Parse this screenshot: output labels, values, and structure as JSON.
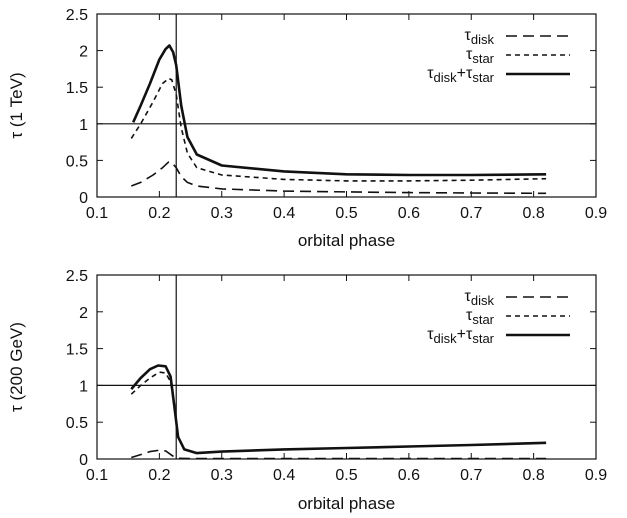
{
  "chart_data": [
    {
      "type": "line",
      "xlabel": "orbital phase",
      "ylabel": "τ (1 TeV)",
      "xlim": [
        0.1,
        0.9
      ],
      "ylim": [
        0,
        2.5
      ],
      "xticks": [
        "0.1",
        "0.2",
        "0.3",
        "0.4",
        "0.5",
        "0.6",
        "0.7",
        "0.8",
        "0.9"
      ],
      "yticks": [
        "0",
        "0.5",
        "1",
        "1.5",
        "2",
        "2.5"
      ],
      "reference_lines": {
        "horizontal_y": 1,
        "vertical_x": 0.227
      },
      "legend_position": "top-right",
      "grid": false,
      "series": [
        {
          "name": {
            "base": "τ",
            "sub": "disk"
          },
          "style": "long-dash",
          "points": [
            [
              0.155,
              0.15
            ],
            [
              0.17,
              0.2
            ],
            [
              0.19,
              0.3
            ],
            [
              0.205,
              0.4
            ],
            [
              0.215,
              0.48
            ],
            [
              0.22,
              0.47
            ],
            [
              0.227,
              0.4
            ],
            [
              0.235,
              0.28
            ],
            [
              0.245,
              0.2
            ],
            [
              0.26,
              0.15
            ],
            [
              0.3,
              0.11
            ],
            [
              0.4,
              0.08
            ],
            [
              0.5,
              0.07
            ],
            [
              0.6,
              0.06
            ],
            [
              0.7,
              0.055
            ],
            [
              0.82,
              0.05
            ]
          ]
        },
        {
          "name": {
            "base": "τ",
            "sub": "star"
          },
          "style": "short-dash",
          "points": [
            [
              0.155,
              0.8
            ],
            [
              0.17,
              1.0
            ],
            [
              0.19,
              1.3
            ],
            [
              0.205,
              1.55
            ],
            [
              0.215,
              1.62
            ],
            [
              0.22,
              1.6
            ],
            [
              0.227,
              1.4
            ],
            [
              0.235,
              0.95
            ],
            [
              0.245,
              0.6
            ],
            [
              0.26,
              0.4
            ],
            [
              0.3,
              0.3
            ],
            [
              0.4,
              0.24
            ],
            [
              0.5,
              0.22
            ],
            [
              0.6,
              0.22
            ],
            [
              0.7,
              0.23
            ],
            [
              0.82,
              0.25
            ]
          ]
        },
        {
          "name": {
            "base": "τ",
            "sub": "disk",
            "join": "+",
            "base2": "τ",
            "sub2": "star"
          },
          "style": "solid",
          "points": [
            [
              0.158,
              1.02
            ],
            [
              0.17,
              1.25
            ],
            [
              0.185,
              1.55
            ],
            [
              0.2,
              1.88
            ],
            [
              0.21,
              2.02
            ],
            [
              0.216,
              2.07
            ],
            [
              0.222,
              1.98
            ],
            [
              0.227,
              1.8
            ],
            [
              0.235,
              1.25
            ],
            [
              0.245,
              0.82
            ],
            [
              0.26,
              0.58
            ],
            [
              0.3,
              0.43
            ],
            [
              0.4,
              0.35
            ],
            [
              0.5,
              0.31
            ],
            [
              0.6,
              0.3
            ],
            [
              0.7,
              0.3
            ],
            [
              0.82,
              0.31
            ]
          ]
        }
      ]
    },
    {
      "type": "line",
      "xlabel": "orbital phase",
      "ylabel": "τ (200 GeV)",
      "xlim": [
        0.1,
        0.9
      ],
      "ylim": [
        0,
        2.5
      ],
      "xticks": [
        "0.1",
        "0.2",
        "0.3",
        "0.4",
        "0.5",
        "0.6",
        "0.7",
        "0.8",
        "0.9"
      ],
      "yticks": [
        "0",
        "0.5",
        "1",
        "1.5",
        "2",
        "2.5"
      ],
      "reference_lines": {
        "horizontal_y": 1,
        "vertical_x": 0.227
      },
      "legend_position": "top-right",
      "grid": false,
      "series": [
        {
          "name": {
            "base": "τ",
            "sub": "disk"
          },
          "style": "long-dash",
          "points": [
            [
              0.155,
              0.02
            ],
            [
              0.17,
              0.06
            ],
            [
              0.185,
              0.1
            ],
            [
              0.2,
              0.12
            ],
            [
              0.21,
              0.11
            ],
            [
              0.22,
              0.05
            ],
            [
              0.227,
              0.01
            ],
            [
              0.26,
              0.005
            ],
            [
              0.4,
              0.005
            ],
            [
              0.6,
              0.005
            ],
            [
              0.82,
              0.005
            ]
          ]
        },
        {
          "name": {
            "base": "τ",
            "sub": "star"
          },
          "style": "short-dash",
          "points": [
            [
              0.155,
              0.88
            ],
            [
              0.17,
              1.0
            ],
            [
              0.185,
              1.1
            ],
            [
              0.2,
              1.18
            ],
            [
              0.21,
              1.17
            ],
            [
              0.218,
              1.05
            ],
            [
              0.224,
              0.7
            ],
            [
              0.23,
              0.3
            ],
            [
              0.24,
              0.13
            ],
            [
              0.26,
              0.08
            ],
            [
              0.3,
              0.1
            ],
            [
              0.4,
              0.13
            ],
            [
              0.5,
              0.15
            ],
            [
              0.6,
              0.17
            ],
            [
              0.7,
              0.19
            ],
            [
              0.82,
              0.22
            ]
          ]
        },
        {
          "name": {
            "base": "τ",
            "sub": "disk",
            "join": "+",
            "base2": "τ",
            "sub2": "star"
          },
          "style": "solid",
          "points": [
            [
              0.155,
              0.95
            ],
            [
              0.17,
              1.1
            ],
            [
              0.185,
              1.22
            ],
            [
              0.198,
              1.27
            ],
            [
              0.21,
              1.26
            ],
            [
              0.218,
              1.12
            ],
            [
              0.224,
              0.72
            ],
            [
              0.23,
              0.3
            ],
            [
              0.24,
              0.13
            ],
            [
              0.26,
              0.08
            ],
            [
              0.3,
              0.1
            ],
            [
              0.4,
              0.13
            ],
            [
              0.5,
              0.15
            ],
            [
              0.6,
              0.17
            ],
            [
              0.7,
              0.19
            ],
            [
              0.82,
              0.22
            ]
          ]
        }
      ]
    }
  ]
}
